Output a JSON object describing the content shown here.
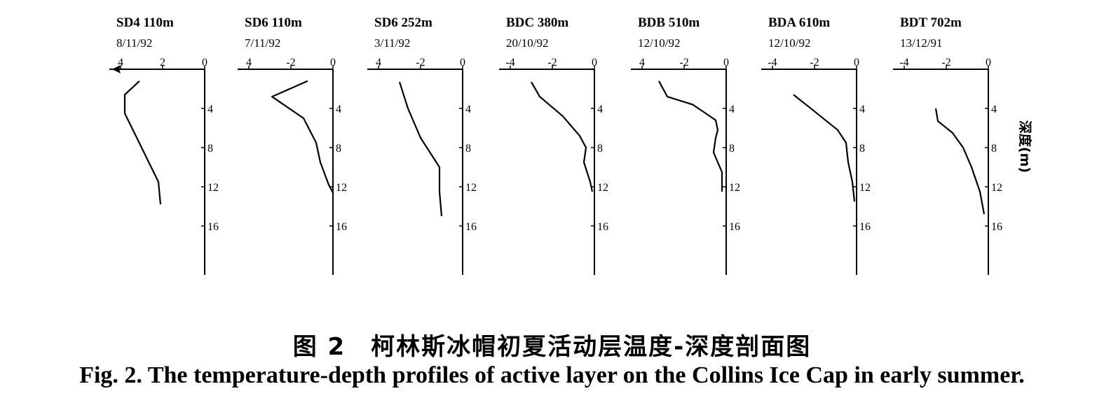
{
  "caption": {
    "zh": "图 2　柯林斯冰帽初夏活动层温度-深度剖面图",
    "en": "Fig. 2. The temperature-depth profiles of active layer on the Collins Ice Cap in early summer."
  },
  "chart_data": {
    "type": "line",
    "axis_label": "深度(m)",
    "panels": [
      {
        "name": "SD4 110m",
        "date": "8/11/92",
        "x_ticks": [
          "4",
          "2",
          "0"
        ],
        "x_tick_values": [
          -4,
          -2,
          0
        ],
        "y_ticks": [
          "4",
          "8",
          "12",
          "16"
        ],
        "y_tick_values": [
          4,
          8,
          12,
          16
        ],
        "points": [
          [
            -3.1,
            1.2
          ],
          [
            -3.8,
            2.6
          ],
          [
            -3.8,
            4.5
          ],
          [
            -3.0,
            8
          ],
          [
            -2.2,
            11.5
          ],
          [
            -2.1,
            13.8
          ]
        ]
      },
      {
        "name": "SD6 110m",
        "date": "7/11/92",
        "x_ticks": [
          "4",
          "-2",
          "0"
        ],
        "x_tick_values": [
          -4,
          -2,
          0
        ],
        "y_ticks": [
          "4",
          "8",
          "12",
          "16"
        ],
        "y_tick_values": [
          4,
          8,
          12,
          16
        ],
        "points": [
          [
            -1.2,
            1.2
          ],
          [
            -2.9,
            2.8
          ],
          [
            -1.4,
            5
          ],
          [
            -0.8,
            7.5
          ],
          [
            -0.6,
            9.5
          ],
          [
            -0.2,
            11.8
          ],
          [
            0,
            12.6
          ]
        ]
      },
      {
        "name": "SD6 252m",
        "date": "3/11/92",
        "x_ticks": [
          "4",
          "-2",
          "0"
        ],
        "x_tick_values": [
          -4,
          -2,
          0
        ],
        "y_ticks": [
          "4",
          "8",
          "12",
          "16"
        ],
        "y_tick_values": [
          4,
          8,
          12,
          16
        ],
        "points": [
          [
            -3.0,
            1.3
          ],
          [
            -2.6,
            4
          ],
          [
            -2.0,
            7
          ],
          [
            -1.1,
            10
          ],
          [
            -1.1,
            12.5
          ],
          [
            -1.0,
            15
          ]
        ]
      },
      {
        "name": "BDC 380m",
        "date": "20/10/92",
        "x_ticks": [
          "-4",
          "-2",
          "0"
        ],
        "x_tick_values": [
          -4,
          -2,
          0
        ],
        "y_ticks": [
          "4",
          "8",
          "12",
          "16"
        ],
        "y_tick_values": [
          4,
          8,
          12,
          16
        ],
        "points": [
          [
            -3.0,
            1.3
          ],
          [
            -2.6,
            2.8
          ],
          [
            -1.5,
            4.8
          ],
          [
            -0.7,
            6.8
          ],
          [
            -0.4,
            8
          ],
          [
            -0.5,
            9.5
          ],
          [
            -0.2,
            11.5
          ],
          [
            -0.1,
            12.5
          ]
        ]
      },
      {
        "name": "BDB 510m",
        "date": "12/10/92",
        "x_ticks": [
          "4",
          "-2",
          "0"
        ],
        "x_tick_values": [
          -4,
          -2,
          0
        ],
        "y_ticks": [
          "4",
          "8",
          "12",
          "16"
        ],
        "y_tick_values": [
          4,
          8,
          12,
          16
        ],
        "points": [
          [
            -3.2,
            1.2
          ],
          [
            -2.8,
            2.8
          ],
          [
            -1.6,
            3.6
          ],
          [
            -0.5,
            5.2
          ],
          [
            -0.4,
            6.2
          ],
          [
            -0.5,
            7
          ],
          [
            -0.6,
            8.5
          ],
          [
            -0.2,
            10.5
          ],
          [
            -0.2,
            12.5
          ]
        ]
      },
      {
        "name": "BDA 610m",
        "date": "12/10/92",
        "x_ticks": [
          "-4",
          "-2",
          "0"
        ],
        "x_tick_values": [
          -4,
          -2,
          0
        ],
        "y_ticks": [
          "4",
          "8",
          "12",
          "16"
        ],
        "y_tick_values": [
          4,
          8,
          12,
          16
        ],
        "points": [
          [
            -3.0,
            2.6
          ],
          [
            -2.0,
            4.3
          ],
          [
            -0.9,
            6.2
          ],
          [
            -0.5,
            7.5
          ],
          [
            -0.4,
            9.5
          ],
          [
            -0.2,
            11.5
          ],
          [
            -0.1,
            13.5
          ]
        ]
      },
      {
        "name": "BDT 702m",
        "date": "13/12/91",
        "x_ticks": [
          "-4",
          "-2",
          "0"
        ],
        "x_tick_values": [
          -4,
          -2,
          0
        ],
        "y_ticks": [
          "4",
          "8",
          "12",
          "16"
        ],
        "y_tick_values": [
          4,
          8,
          12,
          16
        ],
        "points": [
          [
            -2.5,
            4.0
          ],
          [
            -2.4,
            5.3
          ],
          [
            -1.7,
            6.5
          ],
          [
            -1.2,
            8
          ],
          [
            -0.8,
            10
          ],
          [
            -0.4,
            12.5
          ],
          [
            -0.2,
            14.8
          ]
        ]
      }
    ]
  }
}
